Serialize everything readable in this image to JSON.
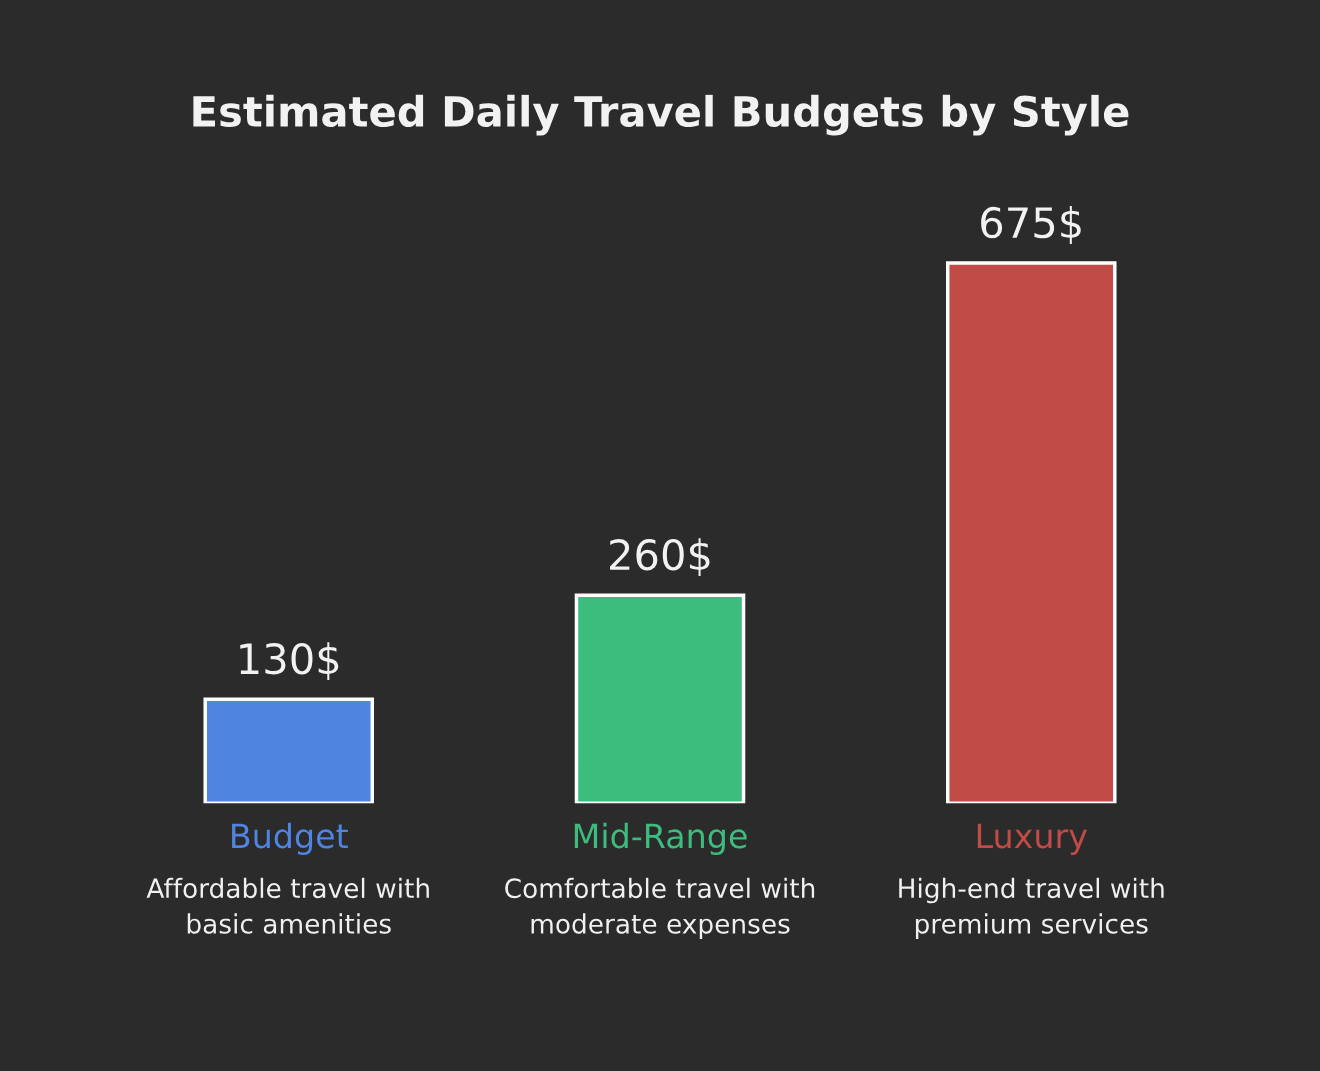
{
  "chart_data": {
    "type": "bar",
    "title": "Estimated Daily Travel Budgets by Style",
    "categories": [
      "Budget",
      "Mid-Range",
      "Luxury"
    ],
    "values": [
      130,
      260,
      675
    ],
    "value_labels": [
      "130$",
      "260$",
      "675$"
    ],
    "colors": [
      "#4f84e0",
      "#3dbd7d",
      "#c14b47"
    ],
    "annotations": [
      "Affordable travel with\nbasic amenities",
      "Comfortable travel with\nmoderate expenses",
      "High-end travel with\npremium services"
    ],
    "grid": false,
    "legend": false
  }
}
